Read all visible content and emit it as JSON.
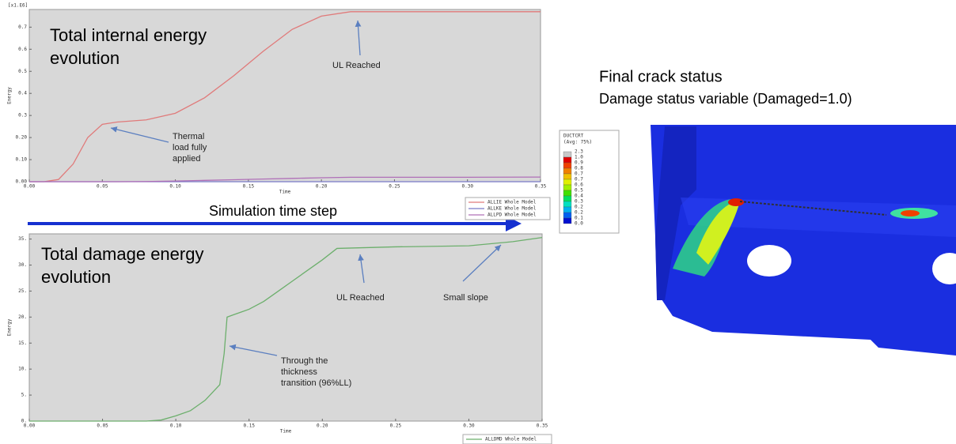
{
  "chart_data": [
    {
      "type": "line",
      "title_lines": [
        "Total internal energy",
        "evolution"
      ],
      "y_multiplier": "[x1.E6]",
      "xlabel": "Time",
      "ylabel": "Energy",
      "x": [
        0,
        0.01,
        0.02,
        0.03,
        0.04,
        0.05,
        0.06,
        0.08,
        0.1,
        0.12,
        0.14,
        0.16,
        0.18,
        0.2,
        0.22,
        0.25,
        0.3,
        0.35
      ],
      "series": [
        {
          "name": "ALLIE Whole Model",
          "color": "#e07a7a",
          "values": [
            0,
            0,
            0.01,
            0.08,
            0.2,
            0.26,
            0.27,
            0.28,
            0.31,
            0.38,
            0.48,
            0.59,
            0.69,
            0.75,
            0.77,
            0.77,
            0.77,
            0.77
          ]
        },
        {
          "name": "ALLKE Whole Model",
          "color": "#7a7ac8",
          "values": [
            0,
            0,
            0,
            0,
            0,
            0,
            0,
            0,
            0,
            0,
            0,
            0,
            0,
            0,
            0,
            0,
            0,
            0
          ]
        },
        {
          "name": "ALLPD Whole Model",
          "color": "#b070b8",
          "values": [
            0,
            0,
            0,
            0,
            0,
            0,
            0,
            0.001,
            0.003,
            0.006,
            0.009,
            0.012,
            0.015,
            0.018,
            0.02,
            0.02,
            0.02,
            0.021
          ]
        }
      ],
      "xlim": [
        0,
        0.35
      ],
      "ylim": [
        0,
        0.78
      ],
      "xticks": [
        {
          "value": 0,
          "label": "0.00"
        },
        {
          "value": 0.05,
          "label": "0.05"
        },
        {
          "value": 0.1,
          "label": "0.10"
        },
        {
          "value": 0.15,
          "label": "0.15"
        },
        {
          "value": 0.2,
          "label": "0.20"
        },
        {
          "value": 0.25,
          "label": "0.25"
        },
        {
          "value": 0.3,
          "label": "0.30"
        },
        {
          "value": 0.35,
          "label": "0.35"
        }
      ],
      "yticks": [
        {
          "value": 0,
          "label": "0.00"
        },
        {
          "value": 0.1,
          "label": "0.10"
        },
        {
          "value": 0.2,
          "label": "0.20"
        },
        0.3,
        0.4,
        0.5,
        0.6,
        0.7
      ],
      "annotations": [
        {
          "lines": [
            "UL Reached"
          ]
        },
        {
          "lines": [
            "Thermal",
            "load fully",
            "applied"
          ]
        }
      ]
    },
    {
      "type": "line",
      "title_lines": [
        "Total damage energy",
        "evolution"
      ],
      "xlabel": "Time",
      "ylabel": "Energy",
      "x": [
        0,
        0.08,
        0.09,
        0.1,
        0.11,
        0.12,
        0.125,
        0.13,
        0.133,
        0.135,
        0.14,
        0.145,
        0.15,
        0.16,
        0.17,
        0.18,
        0.19,
        0.2,
        0.21,
        0.25,
        0.3,
        0.33,
        0.35
      ],
      "series": [
        {
          "name": "ALLDMD Whole Model",
          "color": "#6caf6c",
          "values": [
            0,
            0,
            0.2,
            1,
            2,
            4,
            5.5,
            7,
            13,
            20,
            20.5,
            21,
            21.5,
            23,
            25,
            27,
            29,
            31,
            33.2,
            33.5,
            33.7,
            34.5,
            35.3
          ]
        }
      ],
      "xlim": [
        0,
        0.35
      ],
      "ylim": [
        0,
        36
      ],
      "xticks": [
        {
          "value": 0,
          "label": "0.00"
        },
        {
          "value": 0.05,
          "label": "0.05"
        },
        {
          "value": 0.1,
          "label": "0.10"
        },
        {
          "value": 0.15,
          "label": "0.15"
        },
        {
          "value": 0.2,
          "label": "0.20"
        },
        {
          "value": 0.25,
          "label": "0.25"
        },
        {
          "value": 0.3,
          "label": "0.30"
        },
        {
          "value": 0.35,
          "label": "0.35"
        }
      ],
      "yticks": [
        {
          "value": 0,
          "label": "0."
        },
        {
          "value": 5,
          "label": "5."
        },
        {
          "value": 10,
          "label": "10."
        },
        {
          "value": 15,
          "label": "15."
        },
        {
          "value": 20,
          "label": "20."
        },
        {
          "value": 25,
          "label": "25."
        },
        {
          "value": 30,
          "label": "30."
        },
        {
          "value": 35,
          "label": "35."
        }
      ],
      "annotations": [
        {
          "lines": [
            "UL Reached"
          ]
        },
        {
          "lines": [
            "Small slope"
          ]
        },
        {
          "lines": [
            "Through the",
            "thickness",
            "transition (96%LL)"
          ]
        }
      ]
    }
  ],
  "timeline": "Simulation time step",
  "crack_panel": {
    "title": "Final crack status",
    "subtitle": "Damage status variable (Damaged=1.0)",
    "contour": {
      "variable": "DUCTCRT",
      "average": "(Avg: 75%)",
      "levels": [
        "2.3",
        "1.0",
        "0.9",
        "0.8",
        "0.7",
        "0.7",
        "0.6",
        "0.5",
        "0.4",
        "0.3",
        "0.2",
        "0.2",
        "0.1",
        "0.0"
      ],
      "colors": [
        "#c8c8c8",
        "#e00000",
        "#f04000",
        "#f08000",
        "#f0c000",
        "#e0f000",
        "#a0f000",
        "#40e000",
        "#00e060",
        "#00e0c0",
        "#00b0f0",
        "#0060f0",
        "#0010d0"
      ]
    }
  }
}
